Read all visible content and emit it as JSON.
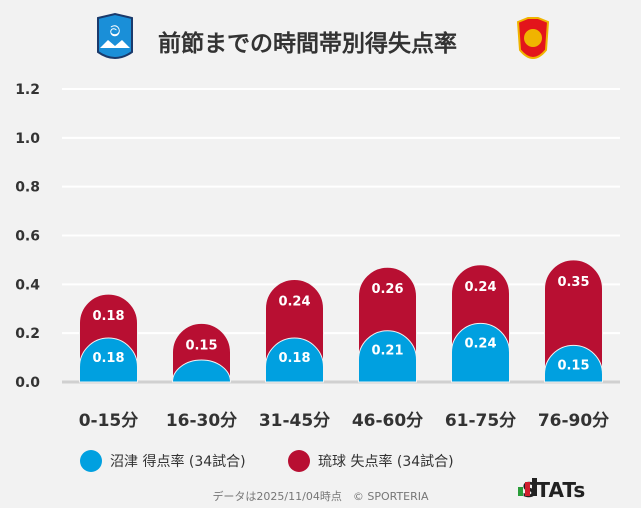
{
  "title": "前節までの時間帯別得失点率",
  "logos": {
    "home": "azul claro 1990",
    "away": "FC Ryukyu"
  },
  "chart_data": {
    "type": "bar",
    "stacked": true,
    "categories": [
      "0-15分",
      "16-30分",
      "31-45分",
      "46-60分",
      "61-75分",
      "76-90分"
    ],
    "series": [
      {
        "name": "沼津 得点率 (34試合)",
        "color": "#00a0e0",
        "values": [
          0.18,
          0.09,
          0.18,
          0.21,
          0.24,
          0.15
        ],
        "labels": [
          "0.18",
          "",
          "0.18",
          "0.21",
          "0.24",
          "0.15"
        ]
      },
      {
        "name": "琉球 失点率 (34試合)",
        "color": "#b80f32",
        "values": [
          0.18,
          0.15,
          0.24,
          0.26,
          0.24,
          0.35
        ],
        "labels": [
          "0.18",
          "0.15",
          "0.24",
          "0.26",
          "0.24",
          "0.35"
        ]
      }
    ],
    "yticks": [
      "0.0",
      "0.2",
      "0.4",
      "0.6",
      "0.8",
      "1.0",
      "1.2"
    ],
    "ylim": [
      0,
      1.2
    ],
    "grid": true,
    "legend": "bottom"
  },
  "footer": "データは2025/11/04時点　© SPORTERIA",
  "brand": "STATs"
}
